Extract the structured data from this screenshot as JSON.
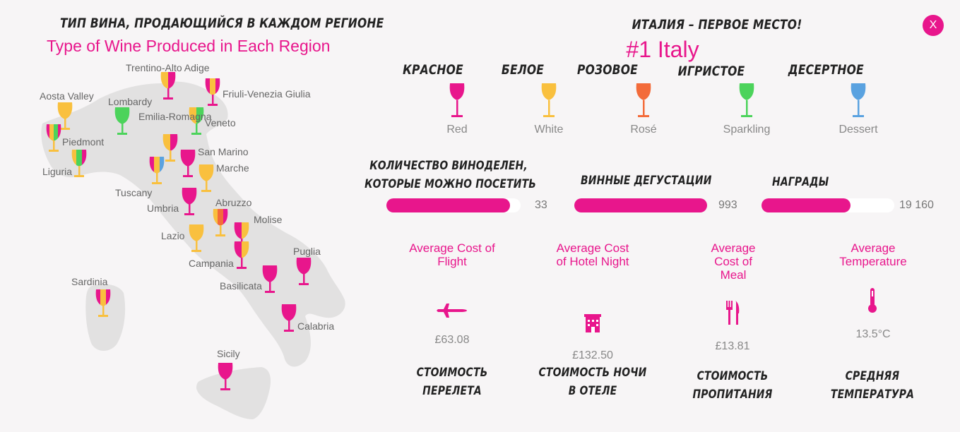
{
  "map": {
    "title_ru": "ТИП ВИНА, ПРОДАЮЩИЙСЯ В КАЖДОМ РЕГИОНЕ",
    "title_en": "Type of Wine Produced in Each Region",
    "regions": [
      {
        "name": "Trentino-Alto Adige"
      },
      {
        "name": "Friuli-Venezia Giulia"
      },
      {
        "name": "Aosta Valley"
      },
      {
        "name": "Lombardy"
      },
      {
        "name": "Emilia-Romagna"
      },
      {
        "name": "Veneto"
      },
      {
        "name": "Piedmont"
      },
      {
        "name": "Liguria"
      },
      {
        "name": "San Marino"
      },
      {
        "name": "Marche"
      },
      {
        "name": "Tuscany"
      },
      {
        "name": "Umbria"
      },
      {
        "name": "Abruzzo"
      },
      {
        "name": "Molise"
      },
      {
        "name": "Lazio"
      },
      {
        "name": "Puglia"
      },
      {
        "name": "Campania"
      },
      {
        "name": "Basilicata"
      },
      {
        "name": "Sardinia"
      },
      {
        "name": "Calabria"
      },
      {
        "name": "Sicily"
      }
    ]
  },
  "header": {
    "subtitle_ru": "ИТАЛИЯ – ПЕРВОЕ МЕСТО!",
    "title": "#1 Italy",
    "close_label": "X"
  },
  "legend": [
    {
      "ru": "КРАСНОЕ",
      "en": "Red",
      "color": "#e8168c"
    },
    {
      "ru": "БЕЛОЕ",
      "en": "White",
      "color": "#f9c03e"
    },
    {
      "ru": "РОЗОВОЕ",
      "en": "Rosé",
      "color": "#f36b3a"
    },
    {
      "ru": "ИГРИСТОЕ",
      "en": "Sparkling",
      "color": "#4cd35b"
    },
    {
      "ru": "ДЕСЕРТНОЕ",
      "en": "Dessert",
      "color": "#5aa2e0"
    }
  ],
  "stats_bars": [
    {
      "label_line1": "КОЛИЧЕСТВО ВИНОДЕЛЕН,",
      "label_line2": "КОТОРЫЕ МОЖНО ПОСЕТИТЬ",
      "value": "33",
      "fill": 0.92
    },
    {
      "label_line1": "ВИННЫЕ ДЕГУСТАЦИИ",
      "value": "993",
      "fill": 1.0
    },
    {
      "label_line1": "НАГРАДЫ",
      "value": "19 160",
      "fill": 0.67
    }
  ],
  "costs": [
    {
      "title": "Average Cost of Flight",
      "icon": "airplane-icon",
      "value": "£63.08",
      "ru_line1": "СТОИМОСТЬ",
      "ru_line2": "ПЕРЕЛЕТА"
    },
    {
      "title": "Average Cost of Hotel Night",
      "icon": "hotel-icon",
      "value": "£132.50",
      "ru_line1": "СТОИМОСТЬ НОЧИ",
      "ru_line2": "В ОТЕЛЕ"
    },
    {
      "title": "Average Cost of Meal",
      "icon": "fork-knife-icon",
      "value": "£13.81",
      "ru_line1": "СТОИМОСТЬ",
      "ru_line2": "ПРОПИТАНИЯ"
    },
    {
      "title": "Average Temperature",
      "icon": "thermometer-icon",
      "value": "13.5°C",
      "ru_line1": "СРЕДНЯЯ",
      "ru_line2": "ТЕМПЕРАТУРА"
    }
  ]
}
